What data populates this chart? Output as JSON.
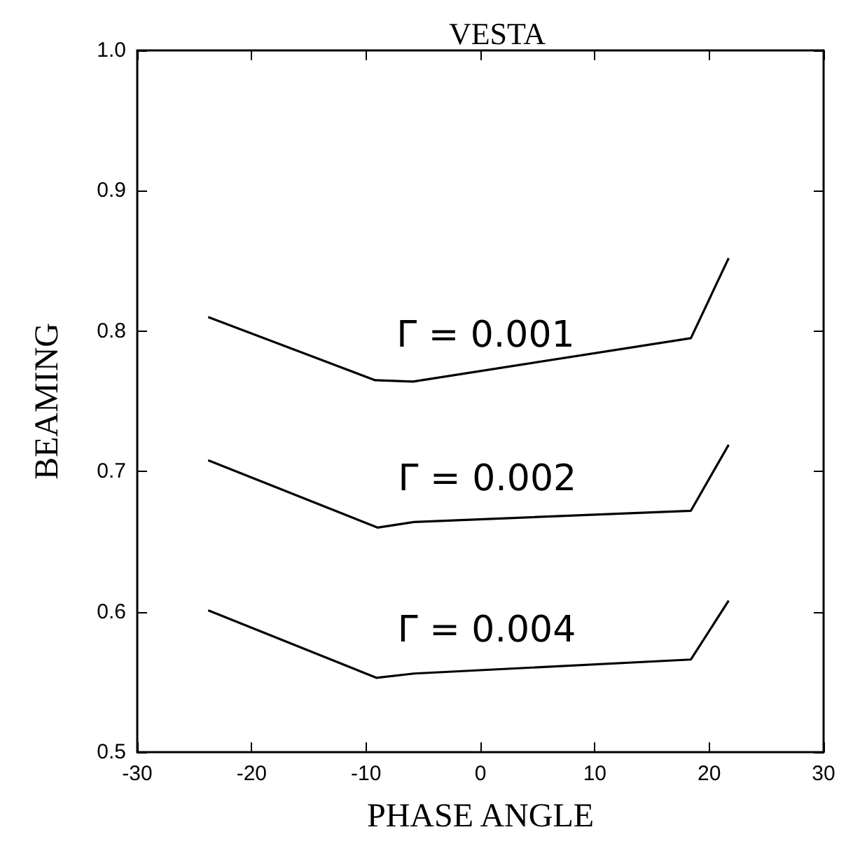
{
  "chart_data": {
    "type": "line",
    "title": "VESTA",
    "xlabel": "PHASE ANGLE",
    "ylabel": "BEAMING",
    "xlim": [
      -30,
      30
    ],
    "xticks": [
      -30,
      -20,
      -10,
      0,
      10,
      20,
      30
    ],
    "ylim": [
      0.5,
      1.0
    ],
    "yticks": [
      0.5,
      0.6,
      0.7,
      0.8,
      0.9,
      {
        "value": 1.0,
        "label": "1.0"
      }
    ],
    "grid": false,
    "legend": false,
    "marker": "none",
    "line_style": "solid",
    "series": [
      {
        "name": "Γ = 0.001",
        "color": "#000000",
        "x": [
          -23.8,
          -9.2,
          -5.9,
          18.4,
          21.7
        ],
        "values": [
          0.81,
          0.765,
          0.764,
          0.795,
          0.852
        ]
      },
      {
        "name": "Γ = 0.002",
        "color": "#000000",
        "x": [
          -23.8,
          -9.0,
          -5.8,
          18.4,
          21.7
        ],
        "values": [
          0.708,
          0.66,
          0.664,
          0.672,
          0.719
        ]
      },
      {
        "name": "Γ = 0.004",
        "color": "#000000",
        "x": [
          -23.8,
          -9.1,
          -5.8,
          18.4,
          21.7
        ],
        "values": [
          0.601,
          0.553,
          0.556,
          0.566,
          0.608
        ]
      }
    ]
  }
}
